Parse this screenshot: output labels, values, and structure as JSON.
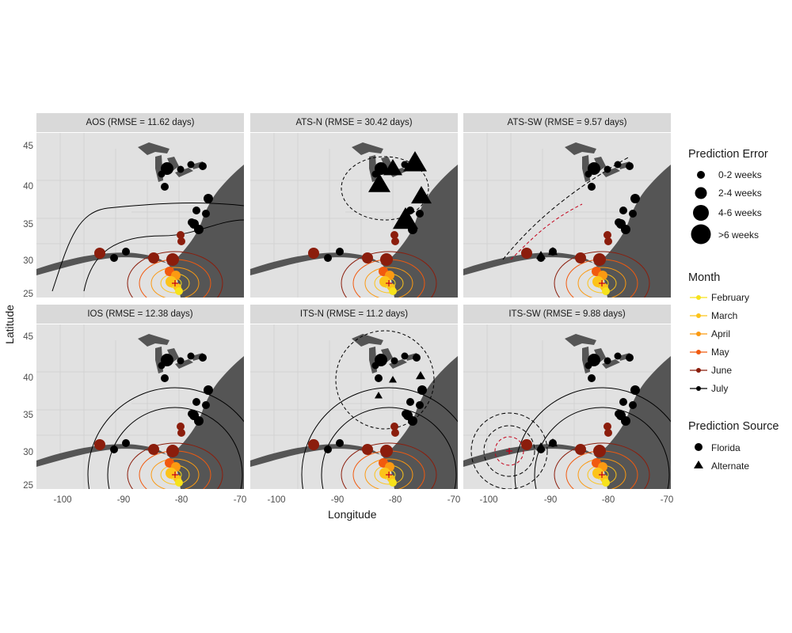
{
  "axes": {
    "xlabel": "Longitude",
    "ylabel": "Latitude",
    "xticks": [
      "-100",
      "-90",
      "-80",
      "-70"
    ],
    "yticks": [
      "45",
      "40",
      "35",
      "30",
      "25"
    ],
    "xlim": [
      -105,
      -70
    ],
    "ylim": [
      25,
      47
    ]
  },
  "panels": [
    {
      "title": "AOS (RMSE = 11.62 days)",
      "alternate": "none"
    },
    {
      "title": "ATS-N (RMSE = 30.42 days)",
      "alternate": "north"
    },
    {
      "title": "ATS-SW (RMSE = 9.57 days)",
      "alternate": "southwest"
    },
    {
      "title": "IOS (RMSE = 12.38 days)",
      "alternate": "none"
    },
    {
      "title": "ITS-N (RMSE = 11.2 days)",
      "alternate": "north-small"
    },
    {
      "title": "ITS-SW (RMSE = 9.88 days)",
      "alternate": "southwest-small"
    }
  ],
  "legend": {
    "error": {
      "title": "Prediction Error",
      "items": [
        {
          "label": "0-2 weeks"
        },
        {
          "label": "2-4 weeks"
        },
        {
          "label": "4-6 weeks"
        },
        {
          "label": ">6 weeks"
        }
      ]
    },
    "month": {
      "title": "Month",
      "items": [
        {
          "label": "February",
          "color": "#f6e21b"
        },
        {
          "label": "March",
          "color": "#fcc31a"
        },
        {
          "label": "April",
          "color": "#fb9a12"
        },
        {
          "label": "May",
          "color": "#f15a0f"
        },
        {
          "label": "June",
          "color": "#8b1d0c"
        },
        {
          "label": "July",
          "color": "#000000"
        }
      ]
    },
    "source": {
      "title": "Prediction Source",
      "items": [
        {
          "label": "Florida",
          "shape": "circle"
        },
        {
          "label": "Alternate",
          "shape": "triangle"
        }
      ]
    }
  },
  "colors": {
    "land": "#e1e1e1",
    "ocean": "#555555",
    "strip": "#d9d9d9",
    "cross": "#c4001a"
  }
}
